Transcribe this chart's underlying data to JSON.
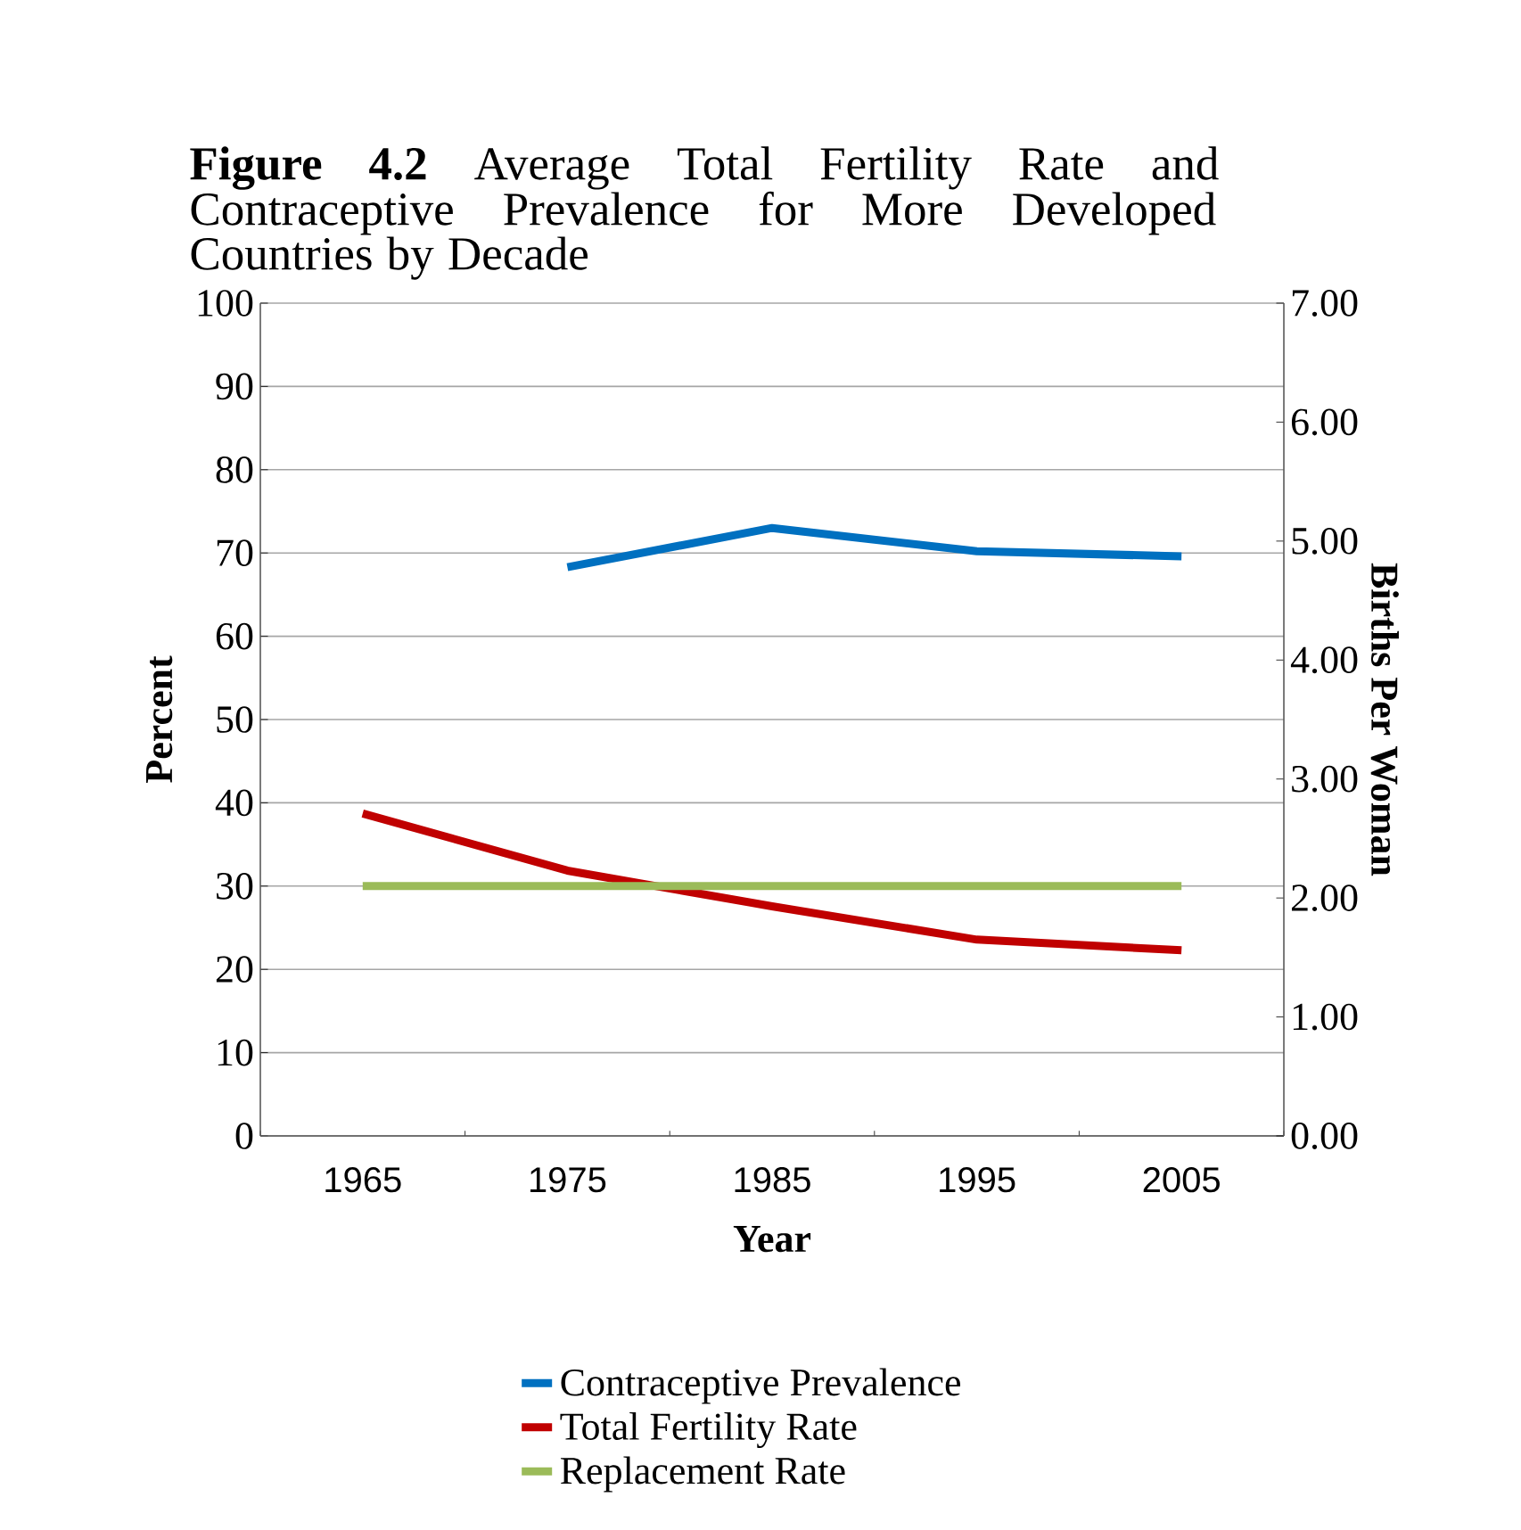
{
  "chart_data": {
    "type": "line",
    "title": "**Figure 4.2** Average Total Fertility Rate and Contraceptive Prevalence for More Developed Countries by Decade",
    "xlabel": "Year",
    "ylabel": "Percent",
    "y2label": "Births Per Woman",
    "categories": [
      "1965",
      "1975",
      "1985",
      "1995",
      "2005"
    ],
    "series": [
      {
        "name": "Contraceptive Prevalence",
        "color": "#0070c0",
        "values": [
          null,
          68.3,
          73.0,
          70.2,
          69.6
        ]
      },
      {
        "name": "Total Fertility Rate",
        "color": "#c00000",
        "axis": "y2",
        "values": [
          2.71,
          2.23,
          1.93,
          1.65,
          1.56
        ]
      },
      {
        "name": "Replacement Rate",
        "color": "#9bbb59",
        "axis": "y2",
        "values": [
          2.1,
          2.1,
          2.1,
          2.1,
          2.1
        ]
      }
    ],
    "ylim": [
      0,
      100
    ],
    "yticks": [
      0,
      10,
      20,
      30,
      40,
      50,
      60,
      70,
      80,
      90,
      100
    ],
    "y2lim": [
      0,
      7
    ],
    "y2ticks": [
      {
        "value": 0,
        "label": "0.00"
      },
      {
        "value": 1,
        "label": "1.00"
      },
      {
        "value": 2,
        "label": "2.00"
      },
      {
        "value": 3,
        "label": "3.00"
      },
      {
        "value": 4,
        "label": "4.00"
      },
      {
        "value": 5,
        "label": "5.00"
      },
      {
        "value": 6,
        "label": "6.00"
      },
      {
        "value": 7,
        "label": "7.00"
      }
    ],
    "grid": "y",
    "legend": "bottom",
    "marker": "none",
    "line_style": "solid"
  }
}
